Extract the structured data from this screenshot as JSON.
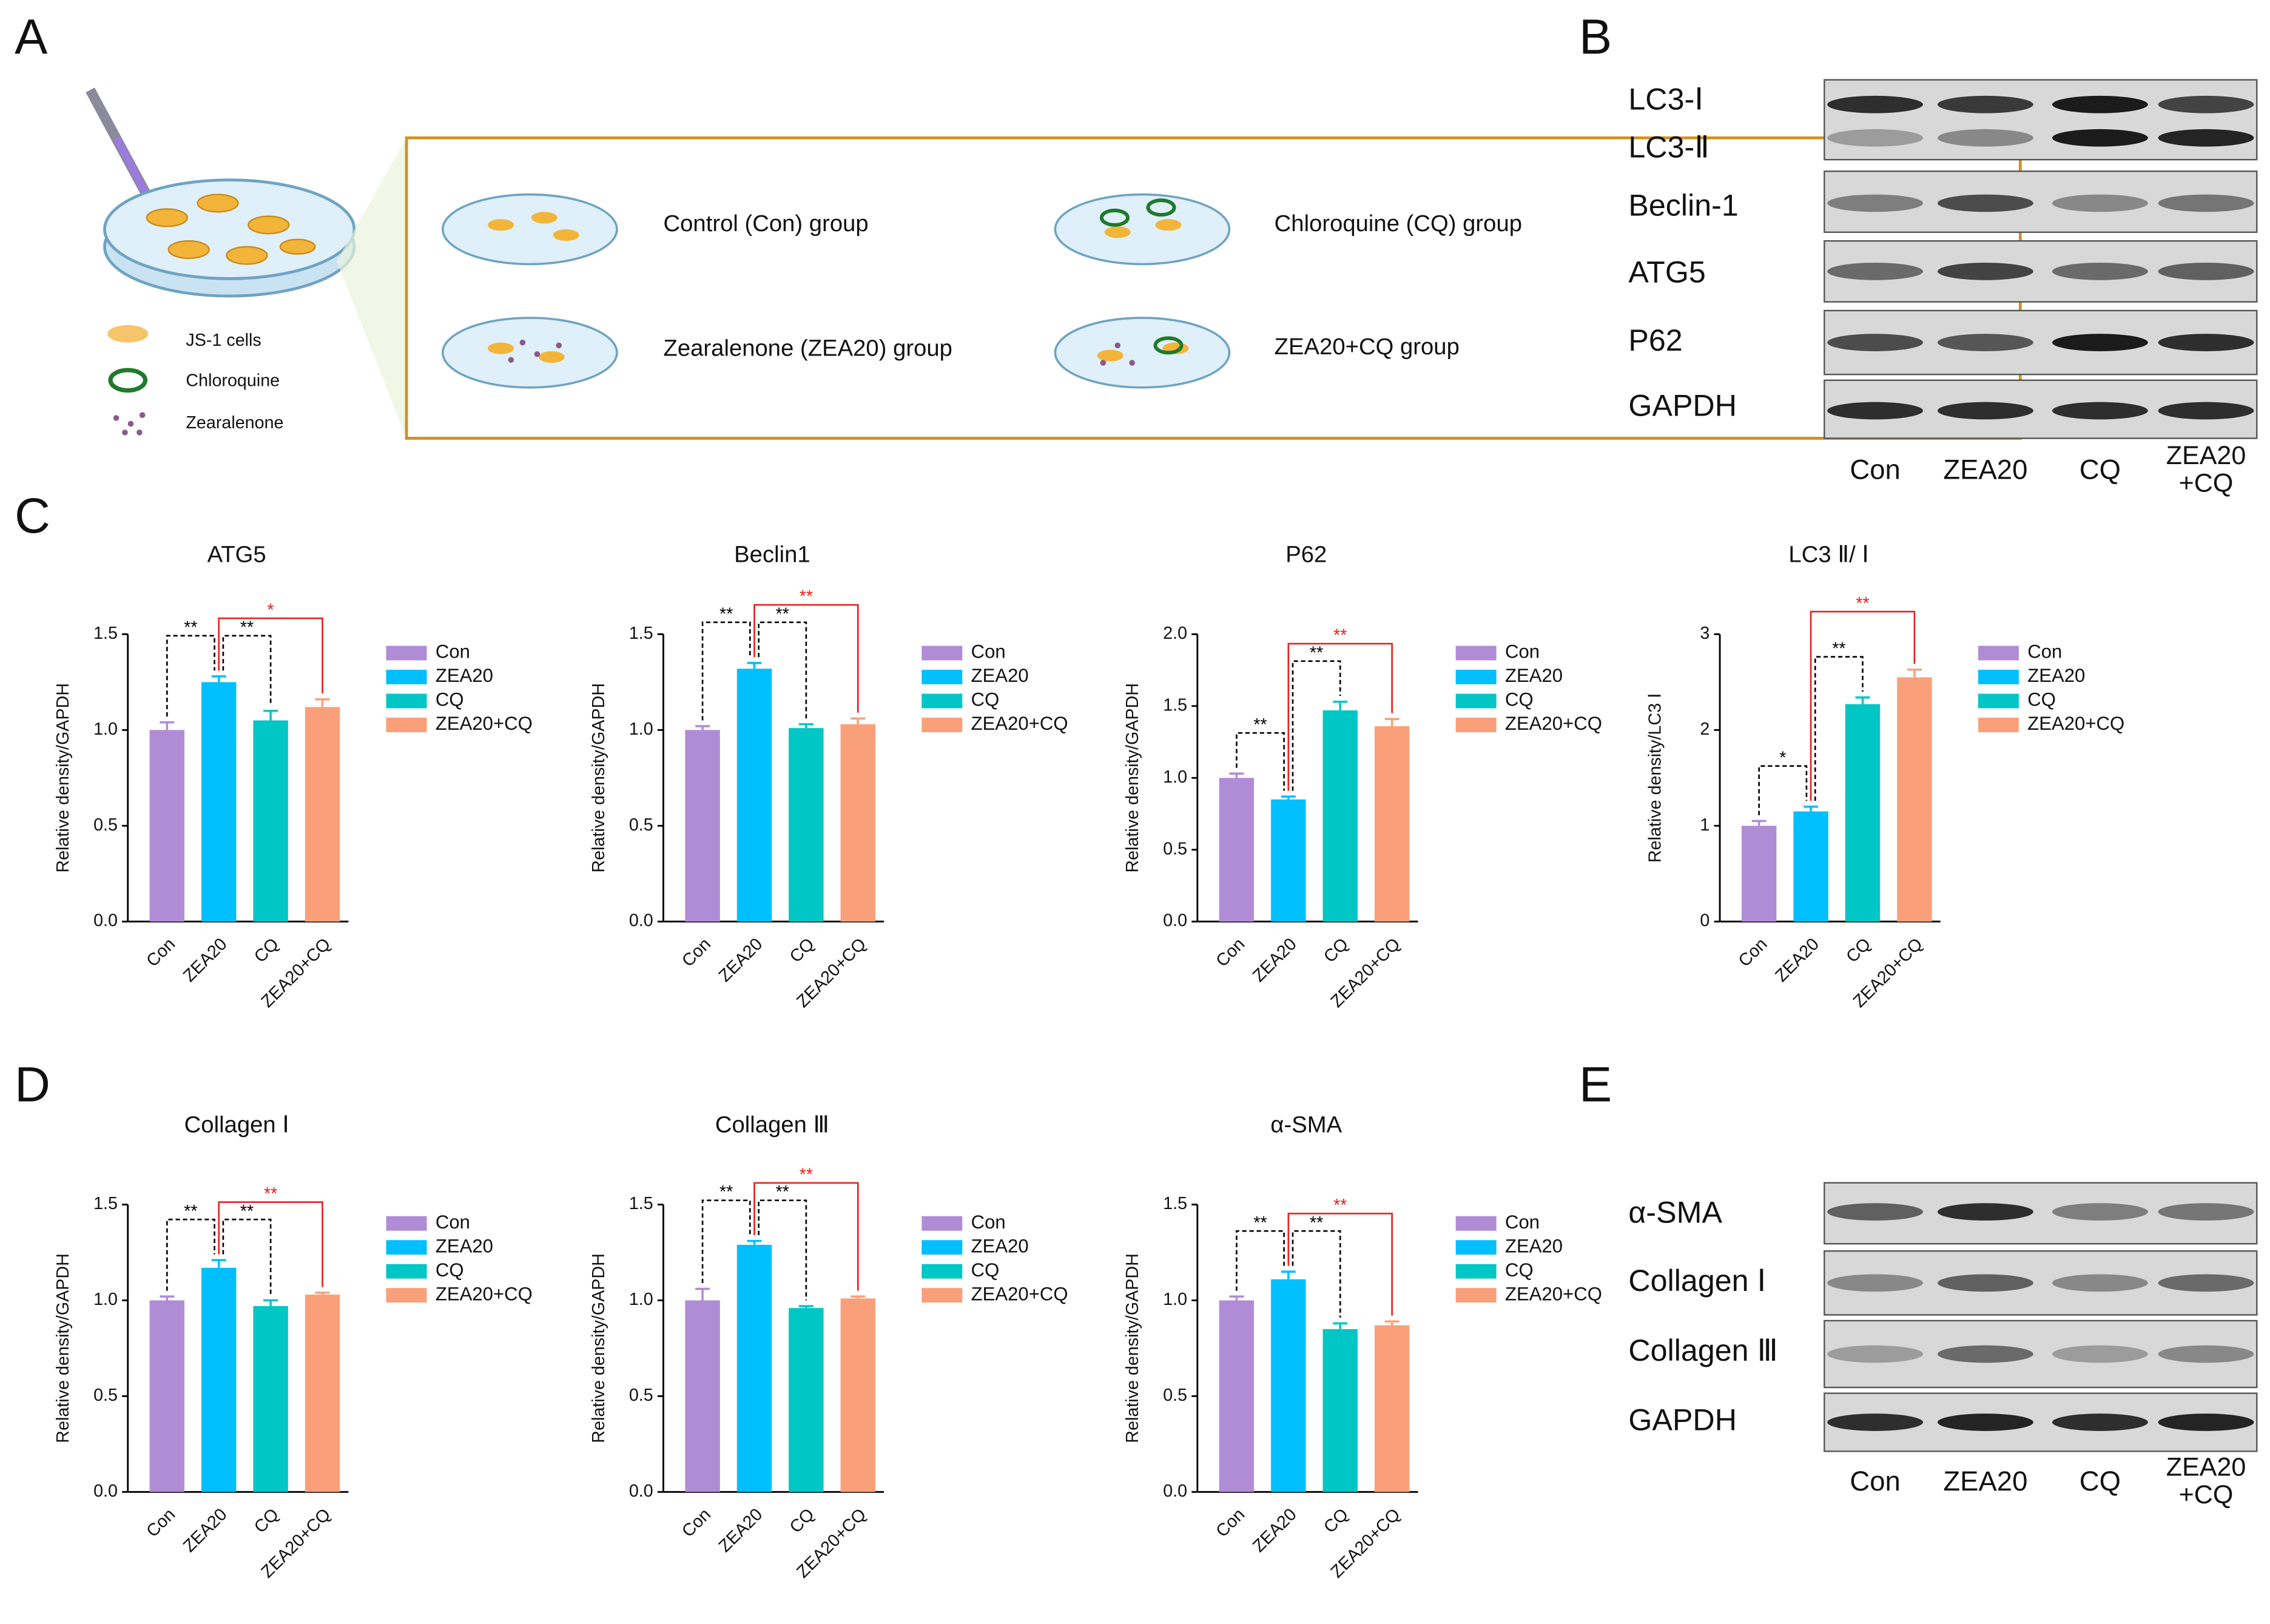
{
  "panel_labels": [
    "A",
    "B",
    "C",
    "D",
    "E"
  ],
  "schematic": {
    "legend": [
      "JS-1 cells",
      "Chloroquine",
      "Zearalenone"
    ],
    "groups": [
      "Control (Con) group",
      "Chloroquine (CQ) group",
      "Zearalenone (ZEA20) group",
      "ZEA20+CQ group"
    ]
  },
  "blot_b": {
    "rows": [
      "LC3-Ⅰ",
      "LC3-Ⅱ",
      "Beclin-1",
      "ATG5",
      "P62",
      "GAPDH"
    ],
    "lanes": [
      "Con",
      "ZEA20",
      "CQ",
      [
        "ZEA20",
        "+CQ"
      ]
    ]
  },
  "blot_e": {
    "rows": [
      "α-SMA",
      "Collagen Ⅰ",
      "Collagen Ⅲ",
      "GAPDH"
    ],
    "lanes": [
      "Con",
      "ZEA20",
      "CQ",
      [
        "ZEA20",
        "+CQ"
      ]
    ]
  },
  "chart_data": [
    {
      "type": "bar",
      "title": "ATG5",
      "y_label": "Relative density/GAPDH",
      "categories": [
        "Con",
        "ZEA20",
        "CQ",
        "ZEA20+CQ"
      ],
      "colors": [
        "#b08cd6",
        "#00bfff",
        "#00c6c6",
        "#f9a07a"
      ],
      "values": [
        1.0,
        1.25,
        1.05,
        1.12
      ],
      "errors": [
        0.04,
        0.03,
        0.05,
        0.04
      ],
      "ylim": [
        0,
        1.5
      ],
      "yticks": [
        {
          "value": 0,
          "label": "0.0"
        },
        0.5,
        {
          "value": 1,
          "label": "1.0"
        },
        1.5
      ],
      "annotations": [
        {
          "text": "**",
          "between": [
            0,
            1
          ],
          "color": "#000000",
          "line": "dashed"
        },
        {
          "text": "**",
          "between": [
            1,
            2
          ],
          "color": "#000000",
          "line": "dashed"
        },
        {
          "text": "*",
          "between": [
            1,
            3
          ],
          "color": "#e8201c",
          "line": "solid"
        }
      ]
    },
    {
      "type": "bar",
      "title": "Beclin1",
      "y_label": "Relative density/GAPDH",
      "categories": [
        "Con",
        "ZEA20",
        "CQ",
        "ZEA20+CQ"
      ],
      "colors": [
        "#b08cd6",
        "#00bfff",
        "#00c6c6",
        "#f9a07a"
      ],
      "values": [
        1.0,
        1.32,
        1.01,
        1.03
      ],
      "errors": [
        0.02,
        0.03,
        0.02,
        0.03
      ],
      "ylim": [
        0,
        1.5
      ],
      "yticks": [
        {
          "value": 0,
          "label": "0.0"
        },
        0.5,
        {
          "value": 1,
          "label": "1.0"
        },
        1.5
      ],
      "annotations": [
        {
          "text": "**",
          "between": [
            0,
            1
          ],
          "color": "#000000",
          "line": "dashed"
        },
        {
          "text": "**",
          "between": [
            1,
            2
          ],
          "color": "#000000",
          "line": "dashed"
        },
        {
          "text": "**",
          "between": [
            1,
            3
          ],
          "color": "#e8201c",
          "line": "solid"
        }
      ]
    },
    {
      "type": "bar",
      "title": "P62",
      "y_label": "Relative density/GAPDH",
      "categories": [
        "Con",
        "ZEA20",
        "CQ",
        "ZEA20+CQ"
      ],
      "colors": [
        "#b08cd6",
        "#00bfff",
        "#00c6c6",
        "#f9a07a"
      ],
      "values": [
        1.0,
        0.85,
        1.47,
        1.36
      ],
      "errors": [
        0.03,
        0.02,
        0.06,
        0.05
      ],
      "ylim": [
        0,
        2
      ],
      "yticks": [
        {
          "value": 0,
          "label": "0.0"
        },
        0.5,
        {
          "value": 1,
          "label": "1.0"
        },
        1.5,
        {
          "value": 2,
          "label": "2.0"
        }
      ],
      "annotations": [
        {
          "text": "**",
          "between": [
            0,
            1
          ],
          "color": "#000000",
          "line": "dashed"
        },
        {
          "text": "**",
          "between": [
            1,
            2
          ],
          "color": "#000000",
          "line": "dashed"
        },
        {
          "text": "**",
          "between": [
            1,
            3
          ],
          "color": "#e8201c",
          "line": "solid"
        }
      ]
    },
    {
      "type": "bar",
      "title": "LC3 Ⅱ/ Ⅰ",
      "y_label": "Relative density/LC3 Ⅰ",
      "categories": [
        "Con",
        "ZEA20",
        "CQ",
        "ZEA20+CQ"
      ],
      "colors": [
        "#b08cd6",
        "#00bfff",
        "#00c6c6",
        "#f9a07a"
      ],
      "values": [
        1.0,
        1.15,
        2.27,
        2.55
      ],
      "errors": [
        0.05,
        0.05,
        0.07,
        0.08
      ],
      "ylim": [
        0,
        3
      ],
      "yticks": [
        0,
        1,
        2,
        3
      ],
      "annotations": [
        {
          "text": "*",
          "between": [
            0,
            1
          ],
          "color": "#000000",
          "line": "dashed"
        },
        {
          "text": "**",
          "between": [
            1,
            2
          ],
          "color": "#000000",
          "line": "dashed"
        },
        {
          "text": "**",
          "between": [
            1,
            3
          ],
          "color": "#e8201c",
          "line": "solid"
        }
      ]
    },
    {
      "type": "bar",
      "title": "Collagen Ⅰ",
      "y_label": "Relative density/GAPDH",
      "categories": [
        "Con",
        "ZEA20",
        "CQ",
        "ZEA20+CQ"
      ],
      "colors": [
        "#b08cd6",
        "#00bfff",
        "#00c6c6",
        "#f9a07a"
      ],
      "values": [
        1.0,
        1.17,
        0.97,
        1.03
      ],
      "errors": [
        0.02,
        0.04,
        0.03,
        0.01
      ],
      "ylim": [
        0,
        1.5
      ],
      "yticks": [
        {
          "value": 0,
          "label": "0.0"
        },
        0.5,
        {
          "value": 1,
          "label": "1.0"
        },
        1.5
      ],
      "annotations": [
        {
          "text": "**",
          "between": [
            0,
            1
          ],
          "color": "#000000",
          "line": "dashed"
        },
        {
          "text": "**",
          "between": [
            1,
            2
          ],
          "color": "#000000",
          "line": "dashed"
        },
        {
          "text": "**",
          "between": [
            1,
            3
          ],
          "color": "#e8201c",
          "line": "solid"
        }
      ]
    },
    {
      "type": "bar",
      "title": "Collagen Ⅲ",
      "y_label": "Relative density/GAPDH",
      "categories": [
        "Con",
        "ZEA20",
        "CQ",
        "ZEA20+CQ"
      ],
      "colors": [
        "#b08cd6",
        "#00bfff",
        "#00c6c6",
        "#f9a07a"
      ],
      "values": [
        1.0,
        1.29,
        0.96,
        1.01
      ],
      "errors": [
        0.06,
        0.02,
        0.01,
        0.01
      ],
      "ylim": [
        0,
        1.5
      ],
      "yticks": [
        {
          "value": 0,
          "label": "0.0"
        },
        0.5,
        {
          "value": 1,
          "label": "1.0"
        },
        1.5
      ],
      "annotations": [
        {
          "text": "**",
          "between": [
            0,
            1
          ],
          "color": "#000000",
          "line": "dashed"
        },
        {
          "text": "**",
          "between": [
            1,
            2
          ],
          "color": "#000000",
          "line": "dashed"
        },
        {
          "text": "**",
          "between": [
            1,
            3
          ],
          "color": "#e8201c",
          "line": "solid"
        }
      ]
    },
    {
      "type": "bar",
      "title": "α-SMA",
      "y_label": "Relative density/GAPDH",
      "categories": [
        "Con",
        "ZEA20",
        "CQ",
        "ZEA20+CQ"
      ],
      "colors": [
        "#b08cd6",
        "#00bfff",
        "#00c6c6",
        "#f9a07a"
      ],
      "values": [
        1.0,
        1.11,
        0.85,
        0.87
      ],
      "errors": [
        0.02,
        0.04,
        0.03,
        0.02
      ],
      "ylim": [
        0,
        1.5
      ],
      "yticks": [
        {
          "value": 0,
          "label": "0.0"
        },
        0.5,
        {
          "value": 1,
          "label": "1.0"
        },
        1.5
      ],
      "annotations": [
        {
          "text": "**",
          "between": [
            0,
            1
          ],
          "color": "#000000",
          "line": "dashed"
        },
        {
          "text": "**",
          "between": [
            1,
            2
          ],
          "color": "#000000",
          "line": "dashed"
        },
        {
          "text": "**",
          "between": [
            1,
            3
          ],
          "color": "#e8201c",
          "line": "solid"
        }
      ]
    }
  ]
}
